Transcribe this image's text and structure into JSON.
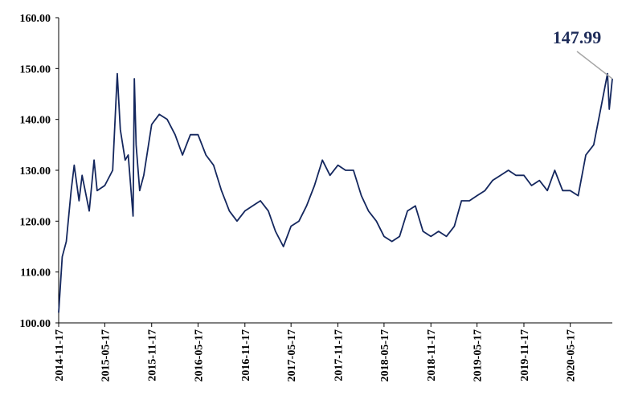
{
  "chart_data": {
    "type": "line",
    "x": [
      "2014-11-17",
      "2014-12-01",
      "2014-12-17",
      "2015-01-05",
      "2015-01-17",
      "2015-02-05",
      "2015-02-17",
      "2015-03-17",
      "2015-04-05",
      "2015-04-17",
      "2015-05-17",
      "2015-06-17",
      "2015-07-05",
      "2015-07-17",
      "2015-08-05",
      "2015-08-17",
      "2015-09-05",
      "2015-09-10",
      "2015-09-17",
      "2015-10-01",
      "2015-10-17",
      "2015-11-17",
      "2015-12-17",
      "2016-01-17",
      "2016-02-17",
      "2016-03-17",
      "2016-04-17",
      "2016-05-17",
      "2016-06-17",
      "2016-07-17",
      "2016-08-17",
      "2016-09-17",
      "2016-10-17",
      "2016-11-17",
      "2016-12-17",
      "2017-01-17",
      "2017-02-17",
      "2017-03-17",
      "2017-04-17",
      "2017-05-17",
      "2017-06-17",
      "2017-07-17",
      "2017-08-17",
      "2017-09-17",
      "2017-10-17",
      "2017-11-17",
      "2017-12-17",
      "2018-01-17",
      "2018-02-17",
      "2018-03-17",
      "2018-04-17",
      "2018-05-17",
      "2018-06-17",
      "2018-07-17",
      "2018-08-17",
      "2018-09-17",
      "2018-10-17",
      "2018-11-17",
      "2018-12-17",
      "2019-01-17",
      "2019-02-17",
      "2019-03-17",
      "2019-04-17",
      "2019-05-17",
      "2019-06-17",
      "2019-07-17",
      "2019-08-17",
      "2019-09-17",
      "2019-10-17",
      "2019-11-17",
      "2019-12-17",
      "2020-01-17",
      "2020-02-17",
      "2020-03-17",
      "2020-04-17",
      "2020-05-17",
      "2020-06-17",
      "2020-07-17",
      "2020-08-17",
      "2020-09-17",
      "2020-10-10",
      "2020-10-17",
      "2020-10-29"
    ],
    "series": [
      {
        "color": "#14275e",
        "values": [
          102,
          113,
          116,
          126,
          131,
          124,
          129,
          122,
          132,
          126,
          127,
          130,
          149,
          138,
          132,
          133,
          121,
          148,
          135,
          126,
          129,
          139,
          141,
          140,
          137,
          133,
          137,
          137,
          133,
          131,
          126,
          122,
          120,
          122,
          123,
          124,
          122,
          118,
          115,
          119,
          120,
          123,
          127,
          132,
          129,
          131,
          130,
          130,
          125,
          122,
          120,
          117,
          116,
          117,
          122,
          123,
          118,
          117,
          118,
          117,
          119,
          124,
          124,
          125,
          126,
          128,
          129,
          130,
          129,
          129,
          127,
          128,
          126,
          130,
          126,
          126,
          125,
          133,
          135,
          143,
          149,
          142,
          147.99
        ]
      }
    ],
    "xlim": [
      "2014-11-17",
      "2020-10-29"
    ],
    "xticks": [
      "2014-11-17",
      "2015-05-17",
      "2015-11-17",
      "2016-05-17",
      "2016-11-17",
      "2017-05-17",
      "2017-11-17",
      "2018-05-17",
      "2018-11-17",
      "2019-05-17",
      "2019-11-17",
      "2020-05-17"
    ],
    "ylim": [
      100,
      160
    ],
    "yticks": [
      {
        "value": 100,
        "label": "100.00"
      },
      {
        "value": 110,
        "label": "110.00"
      },
      {
        "value": 120,
        "label": "120.00"
      },
      {
        "value": 130,
        "label": "130.00"
      },
      {
        "value": 140,
        "label": "140.00"
      },
      {
        "value": 150,
        "label": "150.00"
      },
      {
        "value": 160,
        "label": "160.00"
      }
    ],
    "annotation": {
      "text": "147.99"
    },
    "grid": false
  }
}
